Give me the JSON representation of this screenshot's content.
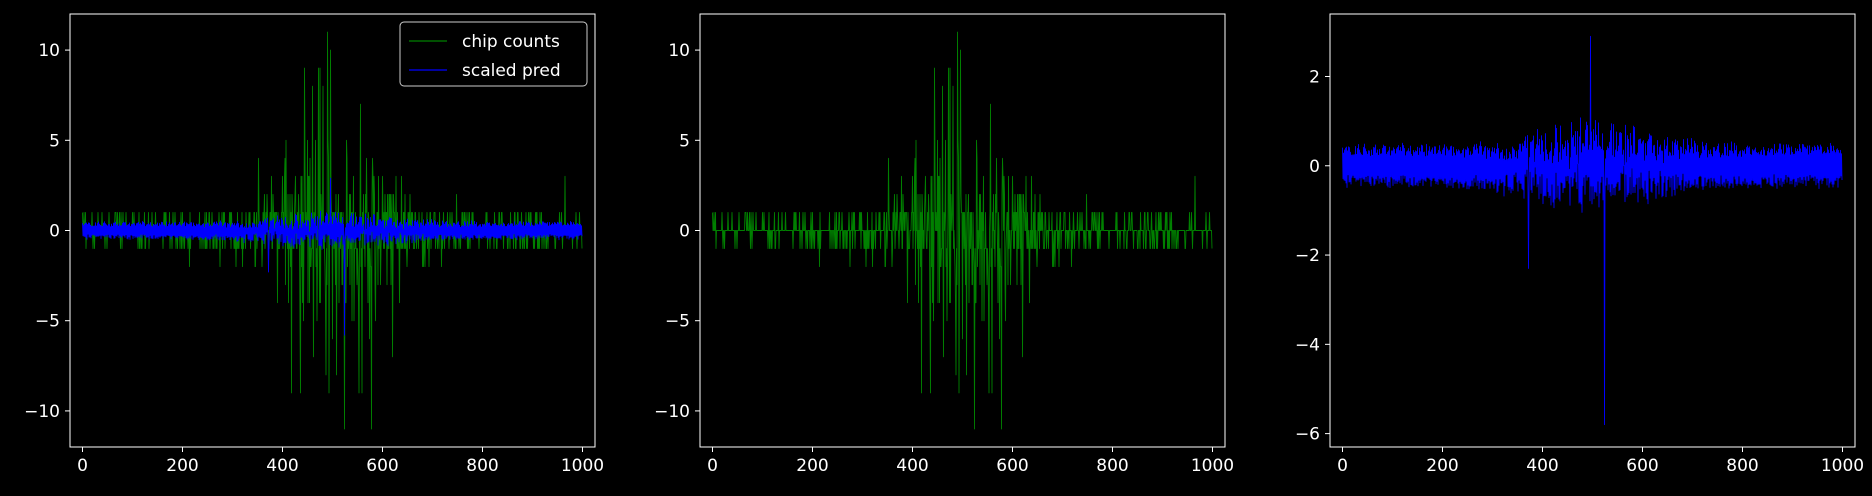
{
  "figure": {
    "background": "#000000",
    "foreground": "#ffffff"
  },
  "colors": {
    "counts": "#008000",
    "pred": "#0000ff",
    "axes": "#ffffff"
  },
  "chart_data": [
    {
      "type": "line",
      "panel": "left",
      "title": "",
      "xlabel": "",
      "ylabel": "",
      "xlim": [
        -25,
        1025
      ],
      "ylim": [
        -12,
        12
      ],
      "xticks": [
        0,
        200,
        400,
        600,
        800,
        1000
      ],
      "yticks": [
        -10,
        -5,
        0,
        5,
        10
      ],
      "grid": false,
      "legend": {
        "position": "top-right",
        "entries": [
          "chip counts",
          "scaled pred"
        ]
      },
      "series": [
        {
          "name": "chip counts",
          "color": "#008000",
          "style": "spiky",
          "n_points": 1000,
          "x_range": [
            0,
            999
          ],
          "y_range": [
            -11,
            11
          ],
          "notable_points": [
            [
              490,
              11
            ],
            [
              472,
              9
            ],
            [
              496,
              10
            ],
            [
              524,
              -11
            ],
            [
              578,
              -11
            ],
            [
              508,
              -8
            ],
            [
              556,
              7
            ],
            [
              620,
              -7
            ],
            [
              405,
              4
            ],
            [
              460,
              8
            ],
            [
              965,
              3
            ]
          ]
        },
        {
          "name": "scaled pred",
          "color": "#0000ff",
          "style": "dual-band",
          "n_points": 1000,
          "x_range": [
            0,
            999
          ],
          "upper_band_mean": 0.3,
          "lower_band_mean": -0.3,
          "y_range": [
            -5.8,
            2.9
          ],
          "notable_points": [
            [
              496,
              2.9
            ],
            [
              524,
              -5.8
            ],
            [
              372,
              -2.3
            ]
          ]
        }
      ]
    },
    {
      "type": "line",
      "panel": "middle",
      "title": "",
      "xlabel": "",
      "ylabel": "",
      "xlim": [
        -25,
        1025
      ],
      "ylim": [
        -12,
        12
      ],
      "xticks": [
        0,
        200,
        400,
        600,
        800,
        1000
      ],
      "yticks": [
        -10,
        -5,
        0,
        5,
        10
      ],
      "grid": false,
      "series": [
        {
          "color": "#008000",
          "style": "spiky",
          "n_points": 1000,
          "x_range": [
            0,
            999
          ],
          "y_range": [
            -11,
            11
          ],
          "notable_points": [
            [
              490,
              11
            ],
            [
              472,
              9
            ],
            [
              496,
              10
            ],
            [
              524,
              -11
            ],
            [
              578,
              -11
            ],
            [
              508,
              -8
            ],
            [
              556,
              7
            ],
            [
              620,
              -7
            ],
            [
              405,
              4
            ],
            [
              460,
              8
            ],
            [
              965,
              3
            ]
          ]
        }
      ]
    },
    {
      "type": "line",
      "panel": "right",
      "title": "",
      "xlabel": "",
      "ylabel": "",
      "xlim": [
        -25,
        1025
      ],
      "ylim": [
        -6.3,
        3.4
      ],
      "xticks": [
        0,
        200,
        400,
        600,
        800,
        1000
      ],
      "yticks": [
        -6,
        -4,
        -2,
        0,
        2
      ],
      "grid": false,
      "series": [
        {
          "color": "#0000ff",
          "style": "dual-band",
          "n_points": 1000,
          "x_range": [
            0,
            999
          ],
          "upper_band_mean": 0.3,
          "lower_band_mean": -0.3,
          "y_range": [
            -5.8,
            2.9
          ],
          "notable_points": [
            [
              496,
              2.9
            ],
            [
              524,
              -5.8
            ],
            [
              372,
              -2.3
            ]
          ]
        }
      ]
    }
  ]
}
